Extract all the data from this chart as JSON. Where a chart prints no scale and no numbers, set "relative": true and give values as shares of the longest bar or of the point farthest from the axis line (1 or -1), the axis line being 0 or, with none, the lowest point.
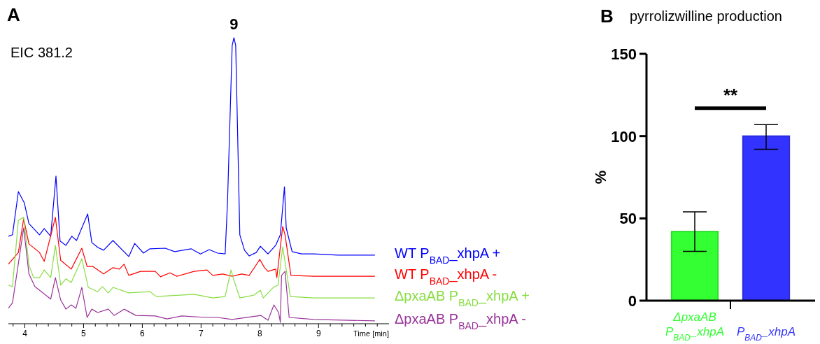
{
  "chart_data": [
    {
      "type": "line",
      "relative": true,
      "xlabel": "Time [min]",
      "xlim": [
        3.72,
        10.2
      ],
      "xticks": [
        {
          "value": 3.8,
          "label": null
        },
        4,
        {
          "value": 4.2,
          "label": null
        },
        {
          "value": 4.4,
          "label": null
        },
        {
          "value": 4.6,
          "label": null
        },
        {
          "value": 4.8,
          "label": null
        },
        5,
        {
          "value": 5.2,
          "label": null
        },
        {
          "value": 5.4,
          "label": null
        },
        {
          "value": 5.6,
          "label": null
        },
        {
          "value": 5.8,
          "label": null
        },
        6,
        {
          "value": 6.2,
          "label": null
        },
        {
          "value": 6.4,
          "label": null
        },
        {
          "value": 6.6,
          "label": null
        },
        {
          "value": 6.8,
          "label": null
        },
        7,
        {
          "value": 7.2,
          "label": null
        },
        {
          "value": 7.4,
          "label": null
        },
        {
          "value": 7.6,
          "label": null
        },
        {
          "value": 7.8,
          "label": null
        },
        8,
        {
          "value": 8.2,
          "label": null
        },
        {
          "value": 8.4,
          "label": null
        },
        {
          "value": 8.6,
          "label": null
        },
        {
          "value": 8.8,
          "label": null
        },
        9,
        {
          "value": 9.2,
          "label": null
        },
        {
          "value": 9.4,
          "label": null
        },
        {
          "value": 9.6,
          "label": null
        },
        {
          "value": 9.8,
          "label": null
        },
        {
          "value": 10,
          "label": null
        }
      ],
      "legend": "right",
      "marker": "none",
      "line_style": "solid",
      "annotations": [
        "A",
        "EIC 381.2",
        {
          "text": "9",
          "x": 7.56,
          "y": 1
        }
      ],
      "series": [
        {
          "name": "WT P$_{BAD}$_xhpA +",
          "color": "#0000ff",
          "x": [
            3.72,
            3.79,
            3.89,
            3.99,
            4.07,
            4.25,
            4.33,
            4.44,
            4.53,
            4.6,
            4.7,
            4.8,
            4.88,
            5.07,
            5.14,
            5.24,
            5.34,
            5.5,
            5.77,
            5.87,
            6.02,
            6.13,
            6.39,
            6.55,
            6.83,
            6.99,
            7.14,
            7.28,
            7.41,
            7.45,
            7.53,
            7.56,
            7.59,
            7.66,
            7.74,
            7.82,
            7.94,
            8.01,
            8.14,
            8.27,
            8.35,
            8.42,
            8.45,
            8.55,
            8.71,
            8.92,
            9.33,
            9.96
          ],
          "values": [
            0.306,
            0.311,
            0.462,
            0.423,
            0.35,
            0.311,
            0.333,
            0.306,
            0.516,
            0.289,
            0.274,
            0.306,
            0.291,
            0.384,
            0.284,
            0.267,
            0.257,
            0.291,
            0.235,
            0.281,
            0.247,
            0.262,
            0.264,
            0.252,
            0.262,
            0.244,
            0.259,
            0.247,
            0.244,
            0.423,
            0.973,
            1,
            0.973,
            0.311,
            0.257,
            0.237,
            0.249,
            0.271,
            0.244,
            0.274,
            0.311,
            0.479,
            0.335,
            0.252,
            0.244,
            0.244,
            0.24,
            0.24
          ]
        },
        {
          "name": "WT P$_{BAD}$_xhpA -",
          "color": "#ff0000",
          "x": [
            3.72,
            3.89,
            3.98,
            4.07,
            4.25,
            4.33,
            4.52,
            4.61,
            4.79,
            4.97,
            5.06,
            5.16,
            5.34,
            5.5,
            5.61,
            5.69,
            5.77,
            5.97,
            6.22,
            6.31,
            6.47,
            6.59,
            6.88,
            7.1,
            7.2,
            7.37,
            7.53,
            7.69,
            7.82,
            8.0,
            8.08,
            8.14,
            8.27,
            8.29,
            8.39,
            8.43,
            8.53,
            8.92,
            9.96
          ],
          "values": [
            0.208,
            0.249,
            0.367,
            0.279,
            0.249,
            0.218,
            0.372,
            0.222,
            0.191,
            0.264,
            0.2,
            0.2,
            0.174,
            0.196,
            0.191,
            0.208,
            0.169,
            0.183,
            0.183,
            0.164,
            0.178,
            0.166,
            0.183,
            0.188,
            0.169,
            0.174,
            0.166,
            0.174,
            0.169,
            0.225,
            0.196,
            0.183,
            0.191,
            0.161,
            0.34,
            0.311,
            0.169,
            0.166,
            0.166
          ]
        },
        {
          "name": "ΔpxaAB P$_{BAD}$_xhpA +",
          "color": "#88dd44",
          "x": [
            3.72,
            3.79,
            3.89,
            3.98,
            4.07,
            4.15,
            4.25,
            4.33,
            4.44,
            4.52,
            4.61,
            4.7,
            4.79,
            4.97,
            5.08,
            5.24,
            5.32,
            5.42,
            5.5,
            5.77,
            6.13,
            6.24,
            6.88,
            7.2,
            7.41,
            7.51,
            7.56,
            7.66,
            7.9,
            8.01,
            8.06,
            8.23,
            8.31,
            8.39,
            8.52,
            8.92,
            9.96
          ],
          "values": [
            0.135,
            0.13,
            0.362,
            0.372,
            0.205,
            0.161,
            0.161,
            0.188,
            0.161,
            0.274,
            0.135,
            0.157,
            0.144,
            0.227,
            0.127,
            0.112,
            0.13,
            0.108,
            0.127,
            0.108,
            0.112,
            0.095,
            0.103,
            0.09,
            0.095,
            0.188,
            0.152,
            0.09,
            0.1,
            0.117,
            0.09,
            0.127,
            0.135,
            0.269,
            0.095,
            0.09,
            0.09
          ]
        },
        {
          "name": "ΔpxaAB P$_{BAD}$_xhpA -",
          "color": "#993399",
          "x": [
            3.72,
            3.79,
            3.98,
            4.07,
            4.17,
            4.44,
            4.52,
            4.61,
            4.7,
            4.79,
            4.87,
            4.97,
            5.06,
            5.14,
            5.24,
            5.42,
            5.52,
            5.69,
            5.89,
            6.22,
            6.42,
            6.67,
            7.09,
            7.28,
            7.53,
            8.02,
            8.14,
            8.24,
            8.32,
            8.35,
            8.37,
            8.43,
            8.5,
            8.92,
            9.96
          ],
          "values": [
            0.054,
            0.073,
            0.335,
            0.174,
            0.13,
            0.086,
            0.161,
            0.083,
            0.051,
            0.066,
            0.054,
            0.127,
            0.022,
            0.051,
            0.039,
            0.051,
            0.029,
            0.051,
            0.029,
            0.027,
            0.017,
            0.027,
            0.022,
            0.022,
            0.015,
            0.029,
            0.012,
            0.066,
            0.039,
            0.005,
            0.169,
            0.183,
            0.022,
            0.015,
            0.01
          ]
        }
      ]
    },
    {
      "type": "bar",
      "title": "pyrrolizwilline production",
      "ylabel": "%",
      "annotations": [
        "B",
        "**"
      ],
      "categories": [
        "ΔpxaAB P$_{BAD}$_xhpA",
        "P$_{BAD}$_xhpA"
      ],
      "values": [
        42,
        100
      ],
      "colors": [
        "#33ff33",
        "#3333ff"
      ],
      "errors": [
        [
          30,
          54
        ],
        [
          92,
          107
        ]
      ],
      "ylim": [
        0,
        150
      ],
      "yticks": [
        0,
        50,
        100,
        150
      ]
    }
  ]
}
